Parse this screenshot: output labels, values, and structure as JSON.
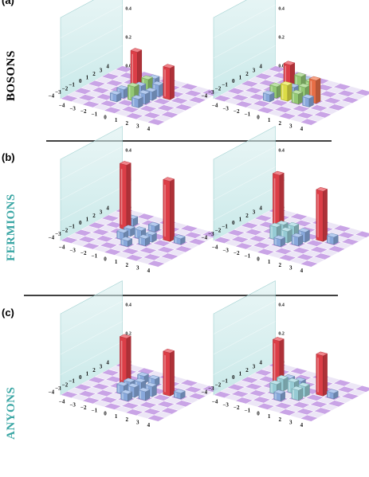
{
  "panels": [
    {
      "letter": "(a)",
      "row_label": "BOSONS"
    },
    {
      "letter": "(b)",
      "row_label": "FERMIONS"
    },
    {
      "letter": "(c)",
      "row_label": "ANYONS"
    }
  ],
  "colors": {
    "bosons_label": "#000000",
    "fermions_label": "#3aa6a4",
    "anyons_label": "#3aa6a4",
    "red": "#e8414b",
    "green": "#9bd27a",
    "orange": "#f3744a",
    "yellow": "#e8e84a",
    "blue": "#8fb1e6",
    "cyan": "#9ed6df",
    "floor_a": "#c9a4e6",
    "floor_b": "#ece6f6",
    "wall": "#bfe5e5"
  },
  "chart_data": [
    {
      "type": "bar3d",
      "panel": "(a)",
      "position": "left",
      "x": [
        -4,
        -3,
        -2,
        -1,
        0,
        1,
        2,
        3,
        4
      ],
      "y": [
        -4,
        -3,
        -2,
        -1,
        0,
        1,
        2,
        3,
        4
      ],
      "zticks": [
        "0.0",
        "0.2",
        "0.4"
      ],
      "zlim": [
        0,
        0.4
      ],
      "bars": [
        {
          "x": -1,
          "y": 1,
          "z": 0.27,
          "color": "red"
        },
        {
          "x": 2,
          "y": 1,
          "z": 0.22,
          "color": "red"
        },
        {
          "x": 0,
          "y": 2,
          "z": 0.08,
          "color": "blue"
        },
        {
          "x": 0,
          "y": 1,
          "z": 0.1,
          "color": "green"
        },
        {
          "x": 1,
          "y": 1,
          "z": 0.08,
          "color": "blue"
        },
        {
          "x": 0,
          "y": 0,
          "z": 0.08,
          "color": "blue"
        },
        {
          "x": 1,
          "y": 0,
          "z": 0.06,
          "color": "blue"
        },
        {
          "x": -1,
          "y": -1,
          "z": 0.06,
          "color": "blue"
        },
        {
          "x": 0,
          "y": -1,
          "z": 0.1,
          "color": "green"
        },
        {
          "x": 1,
          "y": -1,
          "z": 0.07,
          "color": "blue"
        },
        {
          "x": -1,
          "y": -2,
          "z": 0.05,
          "color": "blue"
        },
        {
          "x": 1,
          "y": -2,
          "z": 0.06,
          "color": "blue"
        }
      ]
    },
    {
      "type": "bar3d",
      "panel": "(a)",
      "position": "right",
      "x": [
        -4,
        -3,
        -2,
        -1,
        0,
        1,
        2,
        3,
        4
      ],
      "y": [
        -4,
        -3,
        -2,
        -1,
        0,
        1,
        2,
        3,
        4
      ],
      "zticks": [
        "0.0",
        "0.2",
        "0.4"
      ],
      "zlim": [
        0,
        0.4
      ],
      "bars": [
        {
          "x": -1,
          "y": 1,
          "z": 0.18,
          "color": "red"
        },
        {
          "x": 0,
          "y": 2,
          "z": 0.07,
          "color": "blue"
        },
        {
          "x": 0,
          "y": 1,
          "z": 0.12,
          "color": "green"
        },
        {
          "x": 1,
          "y": 1,
          "z": 0.1,
          "color": "green"
        },
        {
          "x": 2,
          "y": 0,
          "z": 0.16,
          "color": "orange"
        },
        {
          "x": 0,
          "y": 0,
          "z": 0.07,
          "color": "blue"
        },
        {
          "x": 1,
          "y": 0,
          "z": 0.09,
          "color": "green"
        },
        {
          "x": -1,
          "y": -1,
          "z": 0.08,
          "color": "green"
        },
        {
          "x": 0,
          "y": -1,
          "z": 0.11,
          "color": "yellow"
        },
        {
          "x": 1,
          "y": -1,
          "z": 0.07,
          "color": "green"
        },
        {
          "x": -1,
          "y": -2,
          "z": 0.05,
          "color": "blue"
        },
        {
          "x": 2,
          "y": -1,
          "z": 0.06,
          "color": "blue"
        }
      ]
    },
    {
      "type": "bar3d",
      "panel": "(b)",
      "position": "left",
      "x": [
        -4,
        -3,
        -2,
        -1,
        0,
        1,
        2,
        3,
        4
      ],
      "y": [
        -4,
        -3,
        -2,
        -1,
        0,
        1,
        2,
        3,
        4
      ],
      "zticks": [
        "0.0",
        "0.2",
        "0.4"
      ],
      "zlim": [
        0,
        0.4
      ],
      "bars": [
        {
          "x": -2,
          "y": 1,
          "z": 0.45,
          "color": "red"
        },
        {
          "x": 2,
          "y": 1,
          "z": 0.42,
          "color": "red"
        },
        {
          "x": -2,
          "y": 2,
          "z": 0.05,
          "color": "blue"
        },
        {
          "x": 0,
          "y": 2,
          "z": 0.04,
          "color": "blue"
        },
        {
          "x": -1,
          "y": 0,
          "z": 0.05,
          "color": "blue"
        },
        {
          "x": 0,
          "y": 0,
          "z": 0.06,
          "color": "blue"
        },
        {
          "x": 1,
          "y": 0,
          "z": 0.05,
          "color": "blue"
        },
        {
          "x": 3,
          "y": 1,
          "z": 0.04,
          "color": "blue"
        },
        {
          "x": -1,
          "y": -1,
          "z": 0.05,
          "color": "blue"
        },
        {
          "x": 1,
          "y": -1,
          "z": 0.05,
          "color": "blue"
        },
        {
          "x": 0,
          "y": -2,
          "z": 0.04,
          "color": "blue"
        }
      ]
    },
    {
      "type": "bar3d",
      "panel": "(b)",
      "position": "right",
      "x": [
        -4,
        -3,
        -2,
        -1,
        0,
        1,
        2,
        3,
        4
      ],
      "y": [
        -4,
        -3,
        -2,
        -1,
        0,
        1,
        2,
        3,
        4
      ],
      "zticks": [
        "0.0",
        "0.2",
        "0.4"
      ],
      "zlim": [
        0,
        0.4
      ],
      "bars": [
        {
          "x": -2,
          "y": 1,
          "z": 0.38,
          "color": "red"
        },
        {
          "x": 2,
          "y": 1,
          "z": 0.35,
          "color": "red"
        },
        {
          "x": -1,
          "y": 0,
          "z": 0.08,
          "color": "cyan"
        },
        {
          "x": 0,
          "y": 0,
          "z": 0.09,
          "color": "cyan"
        },
        {
          "x": 1,
          "y": 0,
          "z": 0.07,
          "color": "blue"
        },
        {
          "x": -1,
          "y": -1,
          "z": 0.09,
          "color": "cyan"
        },
        {
          "x": 0,
          "y": -1,
          "z": 0.08,
          "color": "cyan"
        },
        {
          "x": 1,
          "y": -1,
          "z": 0.06,
          "color": "blue"
        },
        {
          "x": 3,
          "y": 1,
          "z": 0.05,
          "color": "blue"
        },
        {
          "x": 0,
          "y": -2,
          "z": 0.05,
          "color": "blue"
        }
      ]
    },
    {
      "type": "bar3d",
      "panel": "(c)",
      "position": "left",
      "x": [
        -4,
        -3,
        -2,
        -1,
        0,
        1,
        2,
        3,
        4
      ],
      "y": [
        -4,
        -3,
        -2,
        -1,
        0,
        1,
        2,
        3,
        4
      ],
      "zticks": [
        "0.0",
        "0.2",
        "0.4"
      ],
      "zlim": [
        0,
        0.4
      ],
      "bars": [
        {
          "x": -2,
          "y": 1,
          "z": 0.32,
          "color": "red"
        },
        {
          "x": 2,
          "y": 1,
          "z": 0.3,
          "color": "red"
        },
        {
          "x": -1,
          "y": 2,
          "z": 0.05,
          "color": "blue"
        },
        {
          "x": 0,
          "y": 2,
          "z": 0.05,
          "color": "blue"
        },
        {
          "x": -1,
          "y": 0,
          "z": 0.06,
          "color": "blue"
        },
        {
          "x": 0,
          "y": 0,
          "z": 0.08,
          "color": "blue"
        },
        {
          "x": 1,
          "y": 0,
          "z": 0.07,
          "color": "blue"
        },
        {
          "x": -1,
          "y": -1,
          "z": 0.06,
          "color": "blue"
        },
        {
          "x": 0,
          "y": -1,
          "z": 0.07,
          "color": "blue"
        },
        {
          "x": 1,
          "y": -1,
          "z": 0.06,
          "color": "blue"
        },
        {
          "x": 3,
          "y": 1,
          "z": 0.04,
          "color": "blue"
        },
        {
          "x": 0,
          "y": -2,
          "z": 0.05,
          "color": "blue"
        }
      ]
    },
    {
      "type": "bar3d",
      "panel": "(c)",
      "position": "right",
      "x": [
        -4,
        -3,
        -2,
        -1,
        0,
        1,
        2,
        3,
        4
      ],
      "y": [
        -4,
        -3,
        -2,
        -1,
        0,
        1,
        2,
        3,
        4
      ],
      "zticks": [
        "0.0",
        "0.2",
        "0.4"
      ],
      "zlim": [
        0,
        0.4
      ],
      "bars": [
        {
          "x": -2,
          "y": 1,
          "z": 0.3,
          "color": "red"
        },
        {
          "x": 2,
          "y": 1,
          "z": 0.28,
          "color": "red"
        },
        {
          "x": -1,
          "y": 1,
          "z": 0.06,
          "color": "blue"
        },
        {
          "x": 0,
          "y": 1,
          "z": 0.06,
          "color": "blue"
        },
        {
          "x": -1,
          "y": 0,
          "z": 0.08,
          "color": "cyan"
        },
        {
          "x": 0,
          "y": 0,
          "z": 0.08,
          "color": "cyan"
        },
        {
          "x": 1,
          "y": 0,
          "z": 0.07,
          "color": "cyan"
        },
        {
          "x": -1,
          "y": -1,
          "z": 0.07,
          "color": "cyan"
        },
        {
          "x": 1,
          "y": -1,
          "z": 0.07,
          "color": "cyan"
        },
        {
          "x": 3,
          "y": 1,
          "z": 0.04,
          "color": "blue"
        },
        {
          "x": 0,
          "y": -2,
          "z": 0.05,
          "color": "blue"
        }
      ]
    }
  ]
}
